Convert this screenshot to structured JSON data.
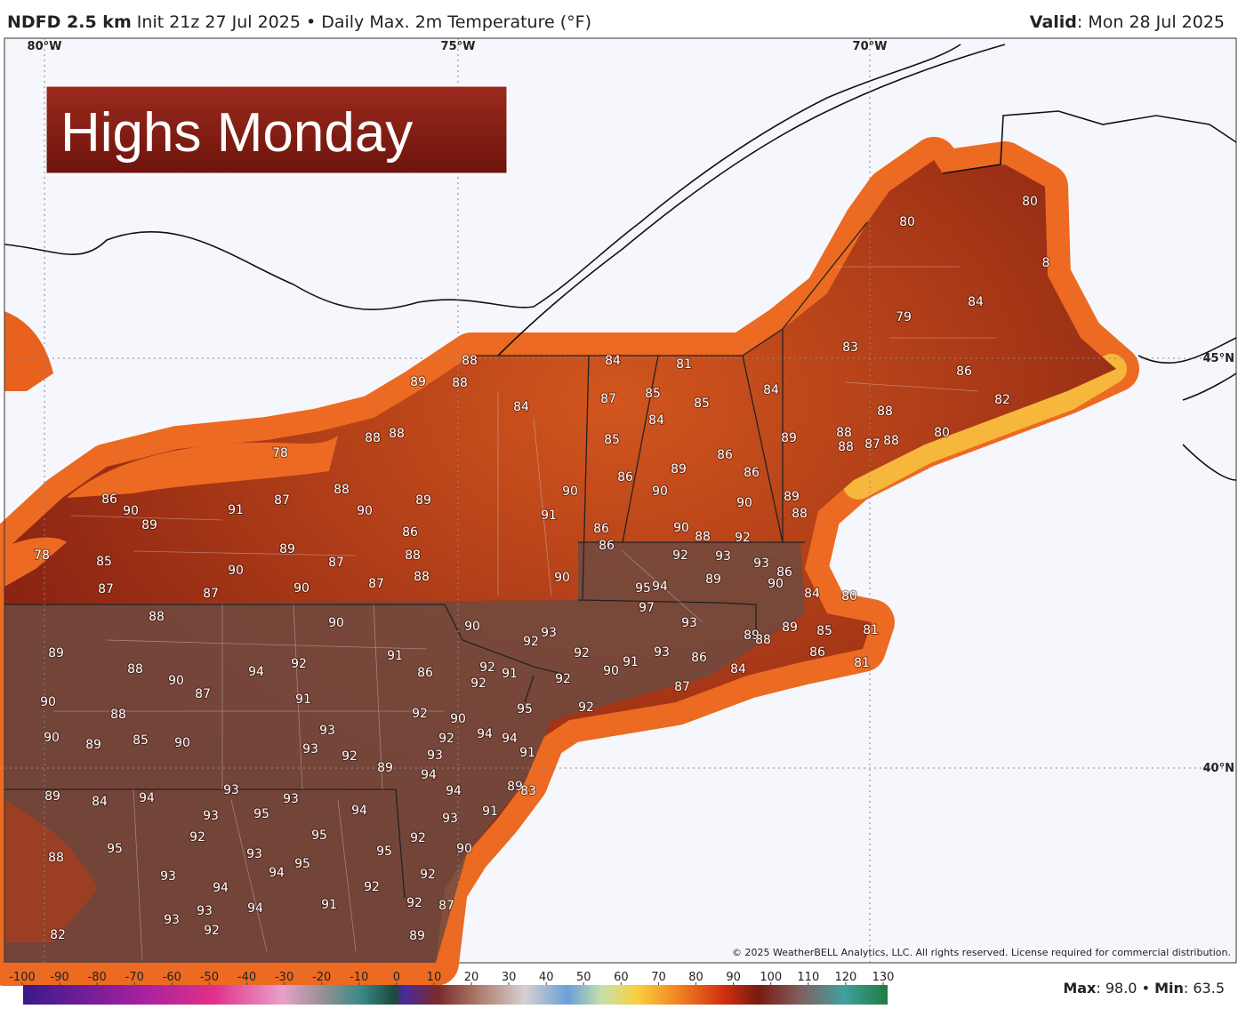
{
  "header": {
    "model": "NDFD 2.5 km",
    "description": "Init 21z 27 Jul 2025 • Daily Max. 2m Temperature (°F)",
    "valid_label": "Valid",
    "valid_date": ": Mon 28 Jul 2025"
  },
  "overlay_title": "Highs Monday",
  "graticule": {
    "lon": [
      "80°W",
      "75°W",
      "70°W"
    ],
    "lat": [
      "45°N",
      "40°N"
    ]
  },
  "temperature_labels": [
    80,
    80,
    79,
    84,
    83,
    86,
    82,
    88,
    80,
    88,
    88,
    87,
    88,
    89,
    84,
    84,
    81,
    87,
    85,
    85,
    84,
    84,
    85,
    86,
    86,
    89,
    86,
    90,
    90,
    90,
    89,
    88,
    91,
    90,
    88,
    92,
    86,
    86,
    88,
    88,
    89,
    88,
    88,
    78,
    86,
    90,
    89,
    91,
    87,
    88,
    90,
    89,
    86,
    88,
    88,
    89,
    87,
    90,
    90,
    87,
    87,
    87,
    85,
    78,
    90,
    92,
    93,
    93,
    86,
    90,
    89,
    95,
    94,
    84,
    80,
    97,
    93,
    89,
    88,
    89,
    85,
    81,
    86,
    81,
    93,
    86,
    84,
    92,
    91,
    90,
    87,
    88,
    90,
    90,
    92,
    93,
    91,
    86,
    92,
    91,
    92,
    92,
    92,
    94,
    89,
    88,
    90,
    87,
    91,
    90,
    88,
    95,
    92,
    92,
    90,
    92,
    94,
    94,
    93,
    93,
    92,
    91,
    93,
    90,
    89,
    85,
    90,
    89,
    94,
    89,
    83,
    94,
    93,
    91,
    89,
    84,
    94,
    93,
    93,
    94,
    93,
    95,
    92,
    95,
    92,
    90,
    88,
    95,
    93,
    95,
    94,
    95,
    93,
    94,
    92,
    92,
    93,
    93,
    94,
    91,
    92,
    87,
    92,
    89,
    82,
    8
  ],
  "copyright": "© 2025 WeatherBELL Analytics, LLC. All rights reserved. License required for commercial distribution.",
  "colorbar": {
    "ticks": [
      -100,
      -90,
      -80,
      -70,
      -60,
      -50,
      -40,
      -30,
      -20,
      -10,
      0,
      10,
      20,
      30,
      40,
      50,
      60,
      70,
      80,
      90,
      100,
      110,
      120,
      130
    ]
  },
  "stats": {
    "max_label": "Max",
    "max_value": ": 98.0",
    "separator": " • ",
    "min_label": "Min",
    "min_value": ": 63.5"
  }
}
